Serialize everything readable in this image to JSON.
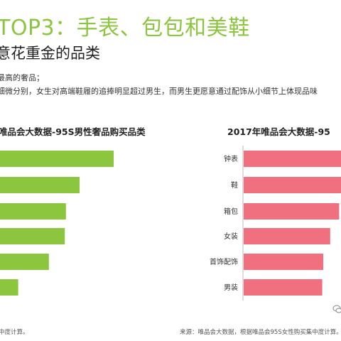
{
  "header": {
    "headline": "TOP3：手表、包包和美鞋",
    "subheadline": "意花重金的品类"
  },
  "notes": {
    "line1": "最高的奢品；",
    "line2": "细微分别，女生对高端鞋履的追捧明显超过男生，而男生更愿意通过配饰从小细节上体现品味"
  },
  "colors": {
    "headline": "#8cc63f",
    "left_bar": "#8cc63f",
    "right_bar": "#f1707f"
  },
  "chart_data": [
    {
      "type": "bar",
      "orientation": "horizontal",
      "title": "唯品会大数据-95S男性奢品购买品类",
      "categories": [
        "",
        "",
        "",
        "",
        "",
        ""
      ],
      "values": [
        100,
        70,
        58,
        57,
        43,
        16
      ],
      "grid": false
    },
    {
      "type": "bar",
      "orientation": "horizontal",
      "title": "2017年唯品会大数据-95",
      "categories": [
        "钟表",
        "鞋",
        "箱包",
        "女装",
        "首饰配饰",
        "男装"
      ],
      "values": [
        100,
        100,
        96,
        87,
        80,
        79
      ],
      "grid": false
    }
  ],
  "sources": {
    "left": "中度计算。",
    "right": "来源：唯品会大数据，根据唯品会95S女性购买集中度计算。"
  },
  "logo": {
    "icon": "wechat-icon"
  }
}
